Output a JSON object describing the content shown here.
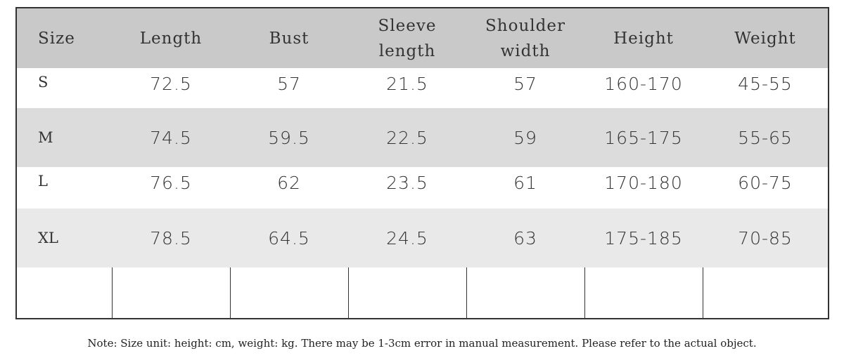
{
  "table": {
    "header": [
      "Size",
      "Length",
      "Bust",
      "Sleeve length",
      "Shoulder width",
      "Height",
      "Weight"
    ],
    "rows": [
      [
        "S",
        "72.5",
        "57",
        "21.5",
        "57",
        "160-170",
        "45-55"
      ],
      [
        "M",
        "74.5",
        "59.5",
        "22.5",
        "59",
        "165-175",
        "55-65"
      ],
      [
        "L",
        "76.5",
        "62",
        "23.5",
        "61",
        "170-180",
        "60-75"
      ],
      [
        "XL",
        "78.5",
        "64.5",
        "24.5",
        "63",
        "175-185",
        "70-85"
      ]
    ]
  },
  "note": "Note: Size unit: height: cm, weight: kg. There may be 1-3cm error in manual measurement. Please refer to the actual object."
}
